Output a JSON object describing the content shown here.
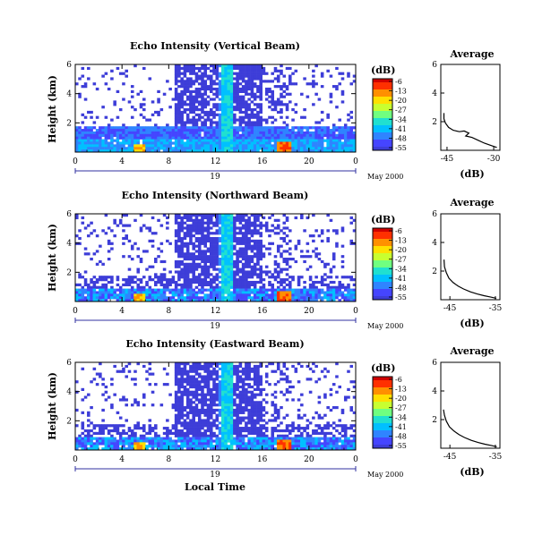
{
  "colors": {
    "scale": [
      "#3d3dd8",
      "#4545ff",
      "#2f84ff",
      "#00c0ff",
      "#20e0d0",
      "#70ff80",
      "#c8ff30",
      "#ffe000",
      "#ff9000",
      "#ff3000",
      "#d00000"
    ],
    "axis": "#000000",
    "date_bar": "#3030a0"
  },
  "colorbar": {
    "unit_label": "(dB)",
    "ticks": [
      "-6",
      "-13",
      "-20",
      "-27",
      "-34",
      "-41",
      "-48",
      "-55"
    ],
    "range": [
      -55,
      -6
    ]
  },
  "date_label": "May 2000",
  "x_axis_label": "Local Time",
  "chart_data": [
    {
      "type": "heatmap",
      "title": "Echo Intensity (Vertical Beam)",
      "ylabel": "Height (km)",
      "x": {
        "ticks": [
          "0",
          "4",
          "8",
          "12",
          "16",
          "20",
          "0"
        ],
        "range": [
          0,
          24
        ]
      },
      "y": {
        "ticks": [
          "6",
          "4",
          "2"
        ],
        "range": [
          0,
          6
        ]
      },
      "day_label": "19",
      "z_range": [
        -55,
        -6
      ],
      "features": "Low-altitude band of enhanced echo (-34 to -6 dB) below about 1.2 km; weak echo column near 13 LT; strong spot near 18 LT at surface"
    },
    {
      "type": "heatmap",
      "title": "Echo Intensity (Northward Beam)",
      "ylabel": "Height (km)",
      "x": {
        "ticks": [
          "0",
          "4",
          "8",
          "12",
          "16",
          "20",
          "0"
        ],
        "range": [
          0,
          24
        ]
      },
      "y": {
        "ticks": [
          "6",
          "4",
          "2"
        ],
        "range": [
          0,
          6
        ]
      },
      "day_label": "19",
      "z_range": [
        -55,
        -6
      ]
    },
    {
      "type": "heatmap",
      "title": "Echo Intensity (Eastward Beam)",
      "ylabel": "Height (km)",
      "x": {
        "ticks": [
          "0",
          "4",
          "8",
          "12",
          "16",
          "20",
          "0"
        ],
        "range": [
          0,
          24
        ]
      },
      "y": {
        "ticks": [
          "6",
          "4",
          "2"
        ],
        "range": [
          0,
          6
        ]
      },
      "day_label": "19",
      "z_range": [
        -55,
        -6
      ]
    },
    {
      "type": "line",
      "title": "Average",
      "xlabel": "(dB)",
      "x": {
        "ticks": [
          "-45",
          "-30"
        ],
        "range": [
          -47,
          -28
        ]
      },
      "y": {
        "ticks": [
          "6",
          "4",
          "2"
        ],
        "range": [
          0,
          6
        ]
      },
      "series": [
        {
          "points": [
            [
              -46,
              2.6
            ],
            [
              -46,
              2.2
            ],
            [
              -45.5,
              1.9
            ],
            [
              -44.5,
              1.6
            ],
            [
              -43,
              1.4
            ],
            [
              -41,
              1.3
            ],
            [
              -39.5,
              1.35
            ],
            [
              -38,
              1.2
            ],
            [
              -39,
              1.0
            ],
            [
              -37,
              0.9
            ],
            [
              -35,
              0.7
            ],
            [
              -33,
              0.5
            ],
            [
              -31,
              0.35
            ],
            [
              -29,
              0.2
            ]
          ]
        }
      ]
    },
    {
      "type": "line",
      "title": "Average",
      "xlabel": "(dB)",
      "x": {
        "ticks": [
          "-45",
          "-35"
        ],
        "range": [
          -47,
          -34
        ]
      },
      "y": {
        "ticks": [
          "6",
          "4",
          "2"
        ],
        "range": [
          0,
          6
        ]
      },
      "series": [
        {
          "points": [
            [
              -46.3,
              2.8
            ],
            [
              -46.2,
              2.3
            ],
            [
              -45.8,
              1.9
            ],
            [
              -45.2,
              1.5
            ],
            [
              -44.3,
              1.2
            ],
            [
              -43.2,
              0.95
            ],
            [
              -42,
              0.75
            ],
            [
              -40.5,
              0.55
            ],
            [
              -39,
              0.4
            ],
            [
              -37.5,
              0.28
            ],
            [
              -36,
              0.18
            ],
            [
              -34.8,
              0.1
            ]
          ]
        }
      ]
    },
    {
      "type": "line",
      "title": "Average",
      "xlabel": "(dB)",
      "x": {
        "ticks": [
          "-45",
          "-35"
        ],
        "range": [
          -47,
          -34
        ]
      },
      "y": {
        "ticks": [
          "6",
          "4",
          "2"
        ],
        "range": [
          0,
          6
        ]
      },
      "series": [
        {
          "points": [
            [
              -46.4,
              2.7
            ],
            [
              -46.2,
              2.3
            ],
            [
              -45.8,
              1.9
            ],
            [
              -45.1,
              1.5
            ],
            [
              -44.1,
              1.2
            ],
            [
              -43,
              0.95
            ],
            [
              -41.8,
              0.75
            ],
            [
              -40.3,
              0.55
            ],
            [
              -38.8,
              0.4
            ],
            [
              -37.3,
              0.28
            ],
            [
              -35.8,
              0.18
            ],
            [
              -34.7,
              0.1
            ]
          ]
        }
      ]
    }
  ]
}
